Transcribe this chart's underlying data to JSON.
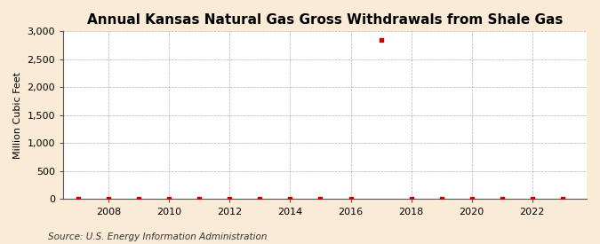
{
  "title": "Annual Kansas Natural Gas Gross Withdrawals from Shale Gas",
  "ylabel": "Million Cubic Feet",
  "source": "Source: U.S. Energy Information Administration",
  "background_color": "#faebd7",
  "plot_background_color": "#ffffff",
  "marker_color": "#cc0000",
  "years": [
    2007,
    2008,
    2009,
    2010,
    2011,
    2012,
    2013,
    2014,
    2015,
    2016,
    2017,
    2018,
    2019,
    2020,
    2021,
    2022,
    2023
  ],
  "values": [
    1,
    2,
    2,
    2,
    2,
    2,
    2,
    2,
    2,
    2,
    2850,
    5,
    5,
    5,
    5,
    5,
    5
  ],
  "ylim": [
    0,
    3000
  ],
  "yticks": [
    0,
    500,
    1000,
    1500,
    2000,
    2500,
    3000
  ],
  "xlim": [
    2006.5,
    2023.8
  ],
  "xticks": [
    2008,
    2010,
    2012,
    2014,
    2016,
    2018,
    2020,
    2022
  ],
  "title_fontsize": 11,
  "label_fontsize": 8,
  "tick_fontsize": 8,
  "source_fontsize": 7.5
}
